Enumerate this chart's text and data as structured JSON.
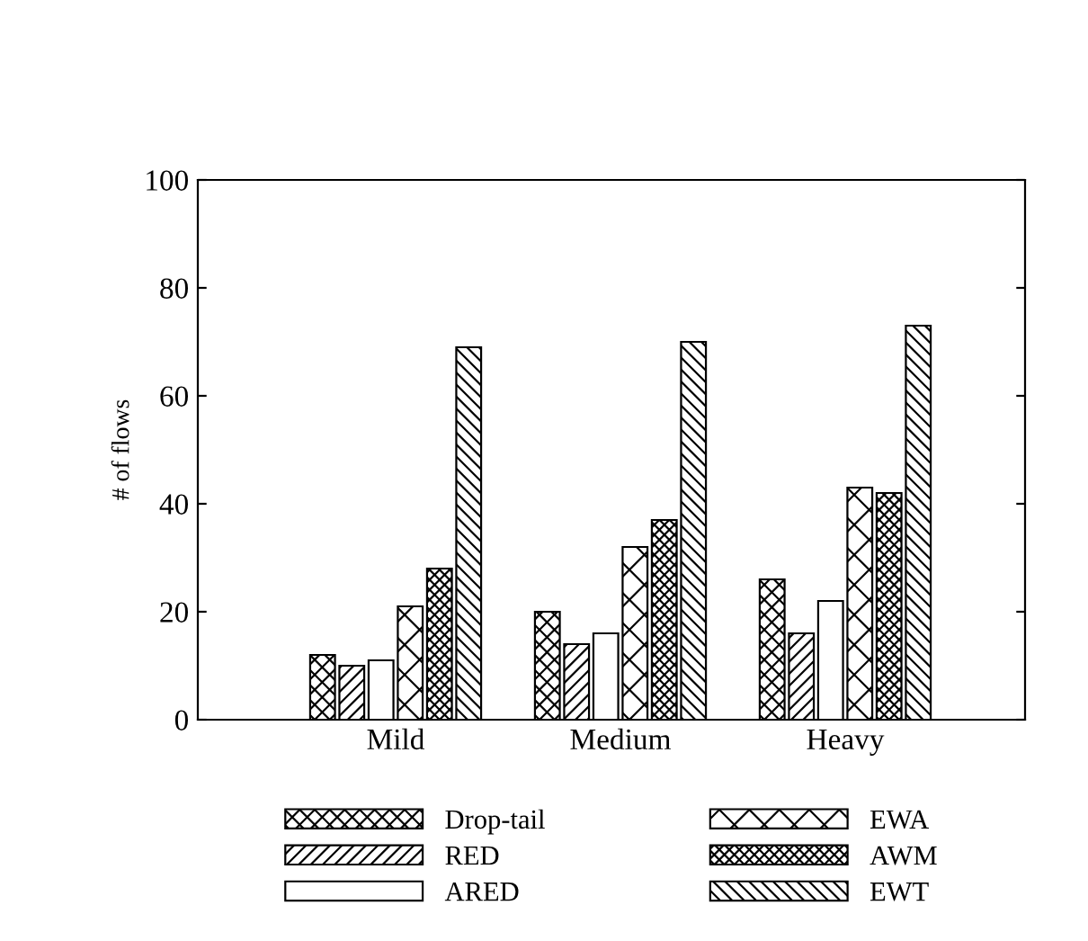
{
  "chart_data": {
    "type": "bar",
    "ylabel": "# of flows",
    "categories": [
      "Mild",
      "Medium",
      "Heavy"
    ],
    "series": [
      {
        "name": "Drop-tail",
        "color": "#000000",
        "values": [
          12,
          20,
          26
        ]
      },
      {
        "name": "RED",
        "color": "#000000",
        "values": [
          10,
          14,
          16
        ]
      },
      {
        "name": "ARED",
        "color": "#ffffff",
        "values": [
          11,
          16,
          22
        ]
      },
      {
        "name": "EWA",
        "color": "#000000",
        "values": [
          21,
          32,
          43
        ]
      },
      {
        "name": "AWM",
        "color": "#000000",
        "values": [
          28,
          37,
          42
        ]
      },
      {
        "name": "EWT",
        "color": "#000000",
        "values": [
          69,
          70,
          73
        ]
      }
    ],
    "ylim": [
      0,
      100
    ],
    "yticks": [
      0,
      20,
      40,
      60,
      80,
      100
    ],
    "grid": false,
    "legend": "bottom"
  }
}
